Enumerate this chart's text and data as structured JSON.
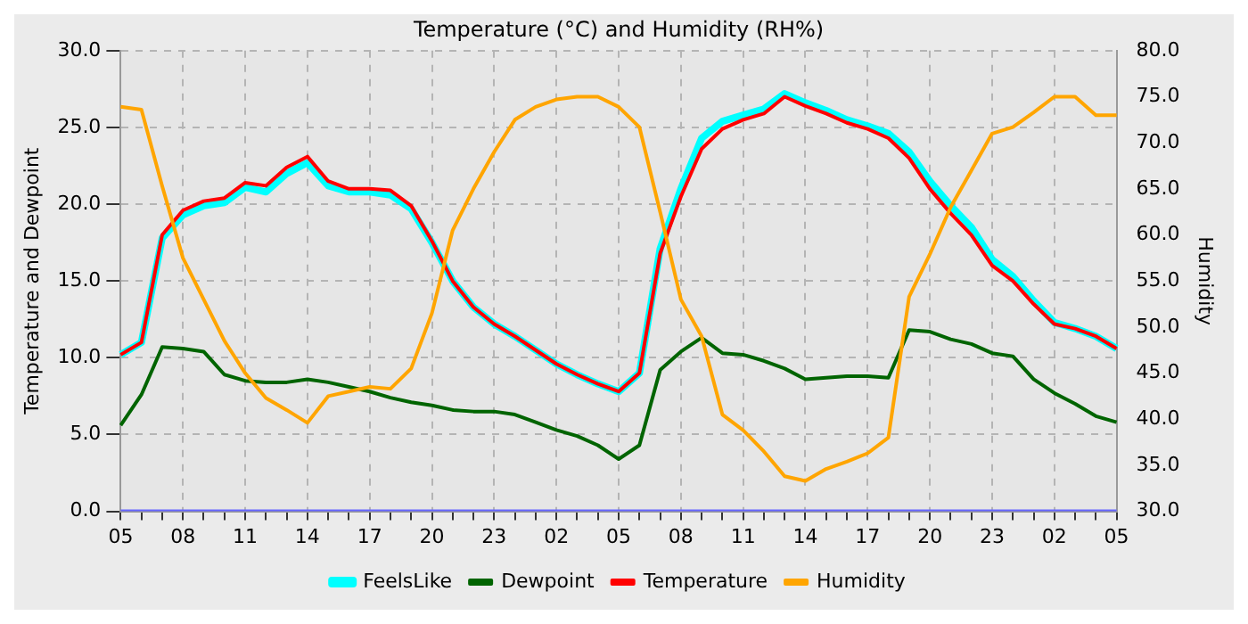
{
  "chart_data": {
    "type": "line",
    "title": "Temperature (°C) and Humidity (RH%)",
    "ylabel": "Temperature and Dewpoint",
    "y2label": "Humidity",
    "categories": [
      "05",
      null,
      null,
      "08",
      null,
      null,
      "11",
      null,
      null,
      "14",
      null,
      null,
      "17",
      null,
      null,
      "20",
      null,
      null,
      "23",
      null,
      null,
      "02",
      null,
      null,
      "05",
      null,
      null,
      "08",
      null,
      null,
      "11",
      null,
      null,
      "14",
      null,
      null,
      "17",
      null,
      null,
      "20",
      null,
      null,
      "23",
      null,
      null,
      "02",
      null,
      null,
      "05"
    ],
    "ylim": [
      0,
      30
    ],
    "yticks": [
      {
        "value": 0,
        "label": "0.0"
      },
      {
        "value": 5,
        "label": "5.0"
      },
      {
        "value": 10,
        "label": "10.0"
      },
      {
        "value": 15,
        "label": "15.0"
      },
      {
        "value": 20,
        "label": "20.0"
      },
      {
        "value": 25,
        "label": "25.0"
      },
      {
        "value": 30,
        "label": "30.0"
      }
    ],
    "y2lim": [
      30,
      80
    ],
    "y2ticks": [
      {
        "value": 30,
        "label": "30.0"
      },
      {
        "value": 35,
        "label": "35.0"
      },
      {
        "value": 40,
        "label": "40.0"
      },
      {
        "value": 45,
        "label": "45.0"
      },
      {
        "value": 50,
        "label": "50.0"
      },
      {
        "value": 55,
        "label": "55.0"
      },
      {
        "value": 60,
        "label": "60.0"
      },
      {
        "value": 65,
        "label": "65.0"
      },
      {
        "value": 70,
        "label": "70.0"
      },
      {
        "value": 75,
        "label": "75.0"
      },
      {
        "value": 80,
        "label": "80.0"
      }
    ],
    "grid": true,
    "legend": "bottom",
    "marker": "none",
    "line_style": "solid",
    "series": [
      {
        "name": "FeelsLike",
        "color": "#00ffff",
        "values": [
          10.2,
          11,
          17.8,
          19.3,
          19.9,
          20.1,
          21.1,
          20.8,
          22,
          22.7,
          21.2,
          20.8,
          20.8,
          20.6,
          19.7,
          17.5,
          15,
          13.3,
          12.2,
          11.4,
          10.5,
          9.6,
          8.9,
          8.3,
          7.8,
          9,
          17.1,
          21,
          24.3,
          25.4,
          25.8,
          26.2,
          27.2,
          26.6,
          26.1,
          25.5,
          25.1,
          24.6,
          23.4,
          21.5,
          19.9,
          18.5,
          16.4,
          15.3,
          13.7,
          12.3,
          11.9,
          11.4,
          10.6
        ]
      },
      {
        "name": "Dewpoint",
        "color": "#006400",
        "values": [
          5.6,
          7.6,
          10.7,
          10.6,
          10.4,
          8.9,
          8.5,
          8.4,
          8.4,
          8.6,
          8.4,
          8.1,
          7.8,
          7.4,
          7.1,
          6.9,
          6.6,
          6.5,
          6.5,
          6.3,
          5.8,
          5.3,
          4.9,
          4.3,
          3.4,
          4.3,
          9.2,
          10.4,
          11.3,
          10.3,
          10.2,
          9.8,
          9.3,
          8.6,
          8.7,
          8.8,
          8.8,
          8.7,
          11.8,
          11.7,
          11.2,
          10.9,
          10.3,
          10.1,
          8.6,
          7.7,
          7,
          6.2,
          5.8
        ]
      },
      {
        "name": "Temperature",
        "color": "#ff0000",
        "values": [
          10.2,
          11,
          18,
          19.6,
          20.2,
          20.4,
          21.4,
          21.2,
          22.4,
          23.1,
          21.5,
          21,
          21,
          20.9,
          19.9,
          17.6,
          15,
          13.3,
          12.2,
          11.4,
          10.5,
          9.6,
          8.9,
          8.3,
          7.8,
          9,
          16.8,
          20.5,
          23.6,
          24.9,
          25.5,
          25.9,
          27,
          26.4,
          25.9,
          25.3,
          24.9,
          24.3,
          23,
          21,
          19.4,
          18,
          16,
          15,
          13.5,
          12.2,
          11.9,
          11.4,
          10.6
        ]
      },
      {
        "name": "Humidity",
        "color": "#ffa500",
        "axis": "y2",
        "values": [
          73.9,
          73.6,
          65.3,
          57.5,
          53,
          48.5,
          45,
          42.3,
          41,
          39.6,
          42.5,
          43,
          43.5,
          43.3,
          45.5,
          51.5,
          60.5,
          65,
          69,
          72.5,
          73.9,
          74.7,
          75,
          75,
          73.9,
          71.7,
          62.5,
          53,
          49,
          40.5,
          38.8,
          36.5,
          33.8,
          33.3,
          34.6,
          35.4,
          36.3,
          38,
          53.3,
          57.9,
          63,
          67,
          71,
          71.7,
          73.3,
          75,
          75,
          73,
          73
        ]
      },
      {
        "color": "#6666ff",
        "values": [
          0,
          0,
          0,
          0,
          0,
          0,
          0,
          0,
          0,
          0,
          0,
          0,
          0,
          0,
          0,
          0,
          0,
          0,
          0,
          0,
          0,
          0,
          0,
          0,
          0,
          0,
          0,
          0,
          0,
          0,
          0,
          0,
          0,
          0,
          0,
          0,
          0,
          0,
          0,
          0,
          0,
          0,
          0,
          0,
          0,
          0,
          0,
          0,
          0
        ]
      }
    ]
  }
}
